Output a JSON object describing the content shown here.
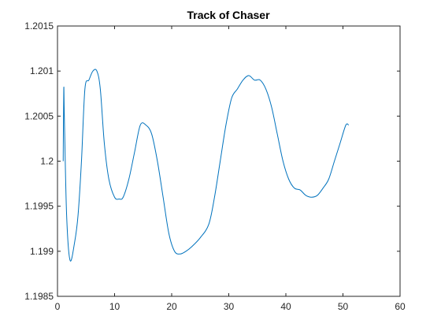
{
  "chart_data": {
    "type": "line",
    "title": "Track of Chaser",
    "xlabel": "",
    "ylabel": "",
    "xlim": [
      0,
      60
    ],
    "ylim": [
      1.1985,
      1.2015
    ],
    "x_ticks": [
      0,
      10,
      20,
      30,
      40,
      50,
      60
    ],
    "x_tick_labels": [
      "0",
      "10",
      "20",
      "30",
      "40",
      "50",
      "60"
    ],
    "y_ticks": [
      1.1985,
      1.199,
      1.1995,
      1.2,
      1.2005,
      1.201,
      1.2015
    ],
    "y_tick_labels": [
      "1.1985",
      "1.199",
      "1.1995",
      "1.2",
      "1.2005",
      "1.201",
      "1.2015"
    ],
    "grid": false,
    "series": [
      {
        "color": "#0072BD",
        "x": [
          1.0,
          1.1,
          1.2,
          1.6,
          2.2,
          3.0,
          3.6,
          4.2,
          4.8,
          5.5,
          6.2,
          6.9,
          7.5,
          8.2,
          9.0,
          10.0,
          10.8,
          11.5,
          12.5,
          13.5,
          14.5,
          15.5,
          16.5,
          17.5,
          18.5,
          19.5,
          20.5,
          21.5,
          22.5,
          23.5,
          25.0,
          26.5,
          27.5,
          28.5,
          29.5,
          30.5,
          31.5,
          32.5,
          33.5,
          34.5,
          35.5,
          36.5,
          37.5,
          38.5,
          39.5,
          40.5,
          41.5,
          42.5,
          43.5,
          44.5,
          45.5,
          46.5,
          47.5,
          48.5,
          49.5,
          50.5,
          51.0
        ],
        "y": [
          1.2,
          1.2008,
          1.2005,
          1.1994,
          1.1989,
          1.1991,
          1.1994,
          1.2,
          1.2008,
          1.2009,
          1.201,
          1.201,
          1.2008,
          1.2002,
          1.1998,
          1.1996,
          1.19958,
          1.1996,
          1.1998,
          1.2001,
          1.2004,
          1.2004,
          1.2003,
          1.2,
          1.1996,
          1.1992,
          1.199,
          1.19897,
          1.199,
          1.19905,
          1.19915,
          1.1993,
          1.1996,
          1.2,
          1.2004,
          1.2007,
          1.2008,
          1.2009,
          1.20095,
          1.2009,
          1.2009,
          1.2008,
          1.2006,
          1.2003,
          1.2,
          1.1998,
          1.1997,
          1.19968,
          1.19962,
          1.1996,
          1.19962,
          1.1997,
          1.1998,
          1.2,
          1.2002,
          1.2004,
          1.2004
        ]
      }
    ]
  }
}
